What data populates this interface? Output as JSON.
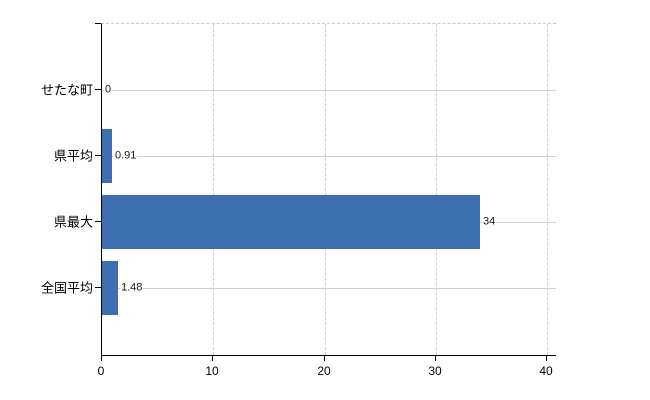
{
  "chart_data": {
    "type": "bar",
    "orientation": "horizontal",
    "title": "",
    "xlabel": "",
    "ylabel": "",
    "categories": [
      "せたな町",
      "県平均",
      "県最大",
      "全国平均"
    ],
    "values": [
      0,
      0.91,
      34,
      1.48
    ],
    "value_labels": [
      "0",
      "0.91",
      "34",
      "1.48"
    ],
    "x_ticks": [
      0,
      10,
      20,
      30,
      40
    ],
    "x_tick_labels": [
      "0",
      "10",
      "20",
      "30",
      "40"
    ],
    "xlim": [
      0,
      40.8
    ],
    "grid": "on",
    "legend": "none",
    "bar_color": "#3c6fb0",
    "axis_color": "#000000",
    "hgrid_color": "#ccd4c8",
    "vgrid_color": "#d2ced2",
    "plot_border_top": "dashed"
  }
}
